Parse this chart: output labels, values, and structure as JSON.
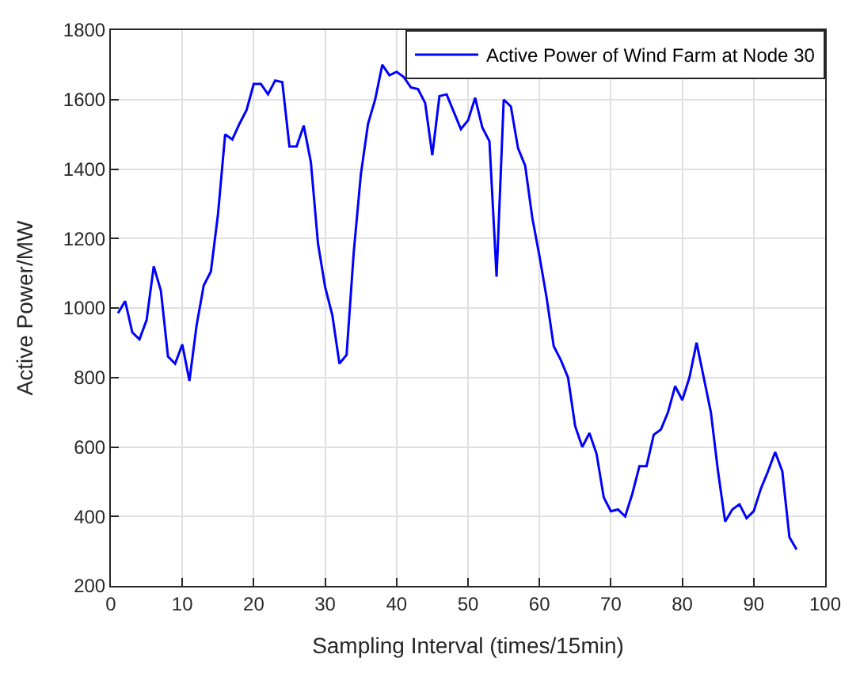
{
  "chart_data": {
    "type": "line",
    "xlabel": "Sampling Interval (times/15min)",
    "ylabel": "Active Power/MW",
    "x": [
      1,
      2,
      3,
      4,
      5,
      6,
      7,
      8,
      9,
      10,
      11,
      12,
      13,
      14,
      15,
      16,
      17,
      18,
      19,
      20,
      21,
      22,
      23,
      24,
      25,
      26,
      27,
      28,
      29,
      30,
      31,
      32,
      33,
      34,
      35,
      36,
      37,
      38,
      39,
      40,
      41,
      42,
      43,
      44,
      45,
      46,
      47,
      48,
      49,
      50,
      51,
      52,
      53,
      54,
      55,
      56,
      57,
      58,
      59,
      60,
      61,
      62,
      63,
      64,
      65,
      66,
      67,
      68,
      69,
      70,
      71,
      72,
      73,
      74,
      75,
      76,
      77,
      78,
      79,
      80,
      81,
      82,
      83,
      84,
      85,
      86,
      87,
      88,
      89,
      90,
      91,
      92,
      93,
      94,
      95,
      96
    ],
    "series": [
      {
        "name": "Active Power of Wind Farm at Node 30",
        "color": "#0000ff",
        "values": [
          985,
          1020,
          930,
          910,
          965,
          1120,
          1050,
          860,
          840,
          895,
          790,
          950,
          1065,
          1105,
          1270,
          1500,
          1485,
          1530,
          1570,
          1645,
          1645,
          1615,
          1655,
          1650,
          1465,
          1465,
          1525,
          1420,
          1185,
          1060,
          980,
          840,
          865,
          1160,
          1385,
          1530,
          1600,
          1700,
          1670,
          1680,
          1665,
          1635,
          1630,
          1590,
          1440,
          1610,
          1615,
          1565,
          1515,
          1540,
          1605,
          1520,
          1480,
          1090,
          1600,
          1580,
          1460,
          1410,
          1260,
          1150,
          1030,
          890,
          850,
          800,
          660,
          600,
          640,
          580,
          455,
          415,
          420,
          400,
          465,
          545,
          545,
          635,
          650,
          700,
          775,
          735,
          800,
          900,
          800,
          700,
          530,
          385,
          420,
          435,
          395,
          415,
          480,
          530,
          585,
          530,
          340,
          305
        ]
      }
    ],
    "xlim": [
      0,
      100
    ],
    "xticks": [
      0,
      10,
      20,
      30,
      40,
      50,
      60,
      70,
      80,
      90,
      100
    ],
    "ylim": [
      200,
      1800
    ],
    "yticks": [
      200,
      400,
      600,
      800,
      1000,
      1200,
      1400,
      1600,
      1800
    ],
    "grid": true,
    "legend": "top right",
    "marker": "none",
    "line_style": "solid"
  }
}
